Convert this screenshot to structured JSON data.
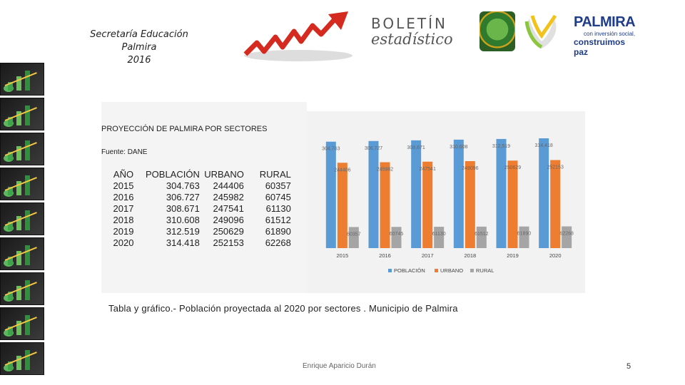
{
  "header": {
    "line1": "Secretaría Educación",
    "line2": "Palmira",
    "line3": "2016"
  },
  "logos": {
    "boletin_line1": "BOLETÍN",
    "boletin_line2": "estadístico",
    "palmira_title": "PALMIRA",
    "palmira_sub": "con inversión social,",
    "palmira_slogan": "construimos paz"
  },
  "table": {
    "title": "PROYECCIÓN DE PALMIRA POR SECTORES",
    "source": "Fuente: DANE",
    "headers": [
      "AÑO",
      "POBLACIÓN",
      "URBANO",
      "RURAL"
    ],
    "rows": [
      [
        "2015",
        "304.763",
        "244406",
        "60357"
      ],
      [
        "2016",
        "306.727",
        "245982",
        "60745"
      ],
      [
        "2017",
        "308.671",
        "247541",
        "61130"
      ],
      [
        "2018",
        "310.608",
        "249096",
        "61512"
      ],
      [
        "2019",
        "312.519",
        "250629",
        "61890"
      ],
      [
        "2020",
        "314.418",
        "252153",
        "62268"
      ]
    ]
  },
  "chart_data": {
    "type": "bar",
    "categories": [
      "2015",
      "2016",
      "2017",
      "2018",
      "2019",
      "2020"
    ],
    "series": [
      {
        "name": "POBLACIÓN",
        "values": [
          304763,
          306727,
          308671,
          310608,
          312519,
          314418
        ],
        "labels": [
          "304,763",
          "306,727",
          "308,671",
          "310,608",
          "312,519",
          "314,418"
        ],
        "color": "#5b9bd5"
      },
      {
        "name": "URBANO",
        "values": [
          244406,
          245982,
          247541,
          249096,
          250629,
          252153
        ],
        "labels": [
          "244406",
          "245982",
          "247541",
          "249096",
          "250629",
          "252153"
        ],
        "color": "#ed7d31"
      },
      {
        "name": "RURAL",
        "values": [
          60357,
          60745,
          61130,
          61512,
          61890,
          62268
        ],
        "labels": [
          "60357",
          "60745",
          "61130",
          "61512",
          "61890",
          "62268"
        ],
        "color": "#a5a5a5"
      }
    ],
    "legend": "bottom",
    "grid": false
  },
  "caption": "Tabla y gráfico.- Población proyectada al 2020 por sectores . Municipio de Palmira",
  "footer": {
    "author": "Enrique Aparicio Durán",
    "page": "5"
  }
}
